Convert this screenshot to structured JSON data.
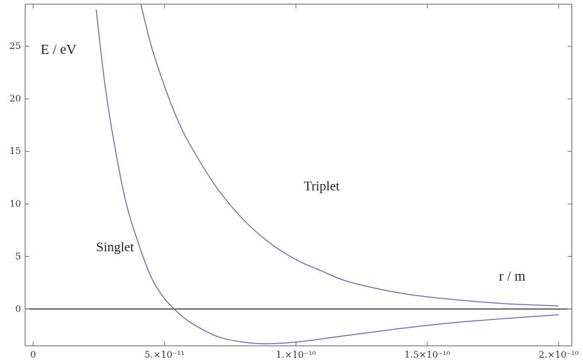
{
  "chart_data": {
    "type": "line",
    "title": "",
    "xlabel": "r / m",
    "ylabel": "E / eV",
    "xlim": [
      -3e-12,
      2.05e-10
    ],
    "ylim": [
      -3.5,
      29
    ],
    "grid": false,
    "x_ticks": [
      {
        "value": 0,
        "label": "0"
      },
      {
        "value": 5e-11,
        "label": "5.×10⁻¹¹"
      },
      {
        "value": 1e-10,
        "label": "1.×10⁻¹⁰"
      },
      {
        "value": 1.5e-10,
        "label": "1.5×10⁻¹⁰"
      },
      {
        "value": 2e-10,
        "label": "2.×10⁻¹⁰"
      }
    ],
    "y_ticks": [
      {
        "value": 0,
        "label": "0"
      },
      {
        "value": 5,
        "label": "5"
      },
      {
        "value": 10,
        "label": "10"
      },
      {
        "value": 15,
        "label": "15"
      },
      {
        "value": 20,
        "label": "20"
      },
      {
        "value": 25,
        "label": "25"
      }
    ],
    "reference_line": {
      "y": 0,
      "color": "#000000"
    },
    "series": [
      {
        "name": "Triplet",
        "color": "#6b6bb0",
        "x": [
          4.1e-11,
          4.5e-11,
          5e-11,
          5.5e-11,
          6e-11,
          7e-11,
          8e-11,
          9e-11,
          1e-10,
          1.1e-10,
          1.2e-10,
          1.4e-10,
          1.6e-10,
          1.8e-10,
          2e-10
        ],
        "y": [
          29.0,
          25.0,
          21.2,
          18.0,
          15.5,
          11.5,
          8.5,
          6.3,
          4.7,
          3.6,
          2.6,
          1.5,
          0.9,
          0.5,
          0.3
        ]
      },
      {
        "name": "Singlet",
        "color": "#6b6bb0",
        "x": [
          2.4e-11,
          2.7e-11,
          3e-11,
          3.5e-11,
          4e-11,
          4.5e-11,
          5e-11,
          5.5e-11,
          6e-11,
          7e-11,
          8e-11,
          8.8e-11,
          1e-10,
          1.2e-10,
          1.4e-10,
          1.6e-10,
          1.8e-10,
          2e-10
        ],
        "y": [
          28.5,
          22.0,
          17.0,
          10.5,
          6.3,
          3.0,
          1.0,
          -0.3,
          -1.3,
          -2.6,
          -3.15,
          -3.3,
          -3.15,
          -2.5,
          -1.85,
          -1.3,
          -0.9,
          -0.55
        ]
      }
    ],
    "annotations": [
      {
        "text": "Triplet",
        "x": 1.03e-10,
        "y": 11.3
      },
      {
        "text": "Singlet",
        "x": 2.4e-11,
        "y": 5.5
      }
    ]
  }
}
